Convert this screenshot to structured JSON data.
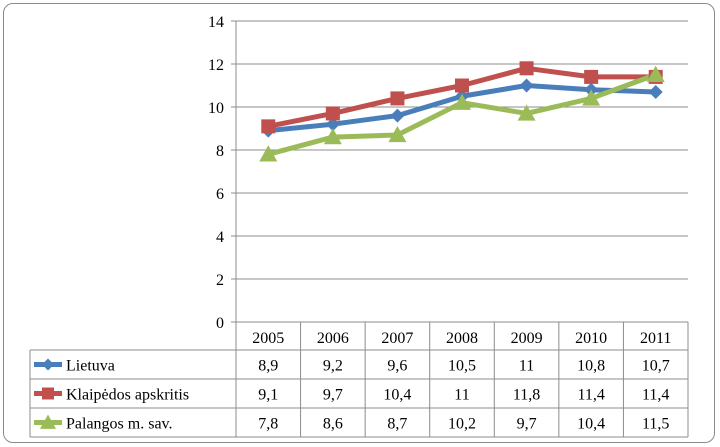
{
  "chart_data": {
    "type": "line",
    "title": "",
    "xlabel": "",
    "ylabel": "",
    "ylim": [
      0,
      14
    ],
    "yticks": [
      0,
      2,
      4,
      6,
      8,
      10,
      12,
      14
    ],
    "grid": true,
    "legend": "data-table",
    "categories": [
      "2005",
      "2006",
      "2007",
      "2008",
      "2009",
      "2010",
      "2011"
    ],
    "series": [
      {
        "name": "Lietuva",
        "color": "#4a7ebb",
        "marker": "diamond",
        "values": [
          8.9,
          9.2,
          9.6,
          10.5,
          11,
          10.8,
          10.7
        ],
        "labels": [
          "8,9",
          "9,2",
          "9,6",
          "10,5",
          "11",
          "10,8",
          "10,7"
        ]
      },
      {
        "name": "Klaipėdos apskritis",
        "color": "#c0504d",
        "marker": "square",
        "values": [
          9.1,
          9.7,
          10.4,
          11,
          11.8,
          11.4,
          11.4
        ],
        "labels": [
          "9,1",
          "9,7",
          "10,4",
          "11",
          "11,8",
          "11,4",
          "11,4"
        ]
      },
      {
        "name": "Palangos m. sav.",
        "color": "#9bbb59",
        "marker": "triangle",
        "values": [
          7.8,
          8.6,
          8.7,
          10.2,
          9.7,
          10.4,
          11.5
        ],
        "labels": [
          "7,8",
          "8,6",
          "8,7",
          "10,2",
          "9,7",
          "10,4",
          "11,5"
        ]
      }
    ]
  }
}
